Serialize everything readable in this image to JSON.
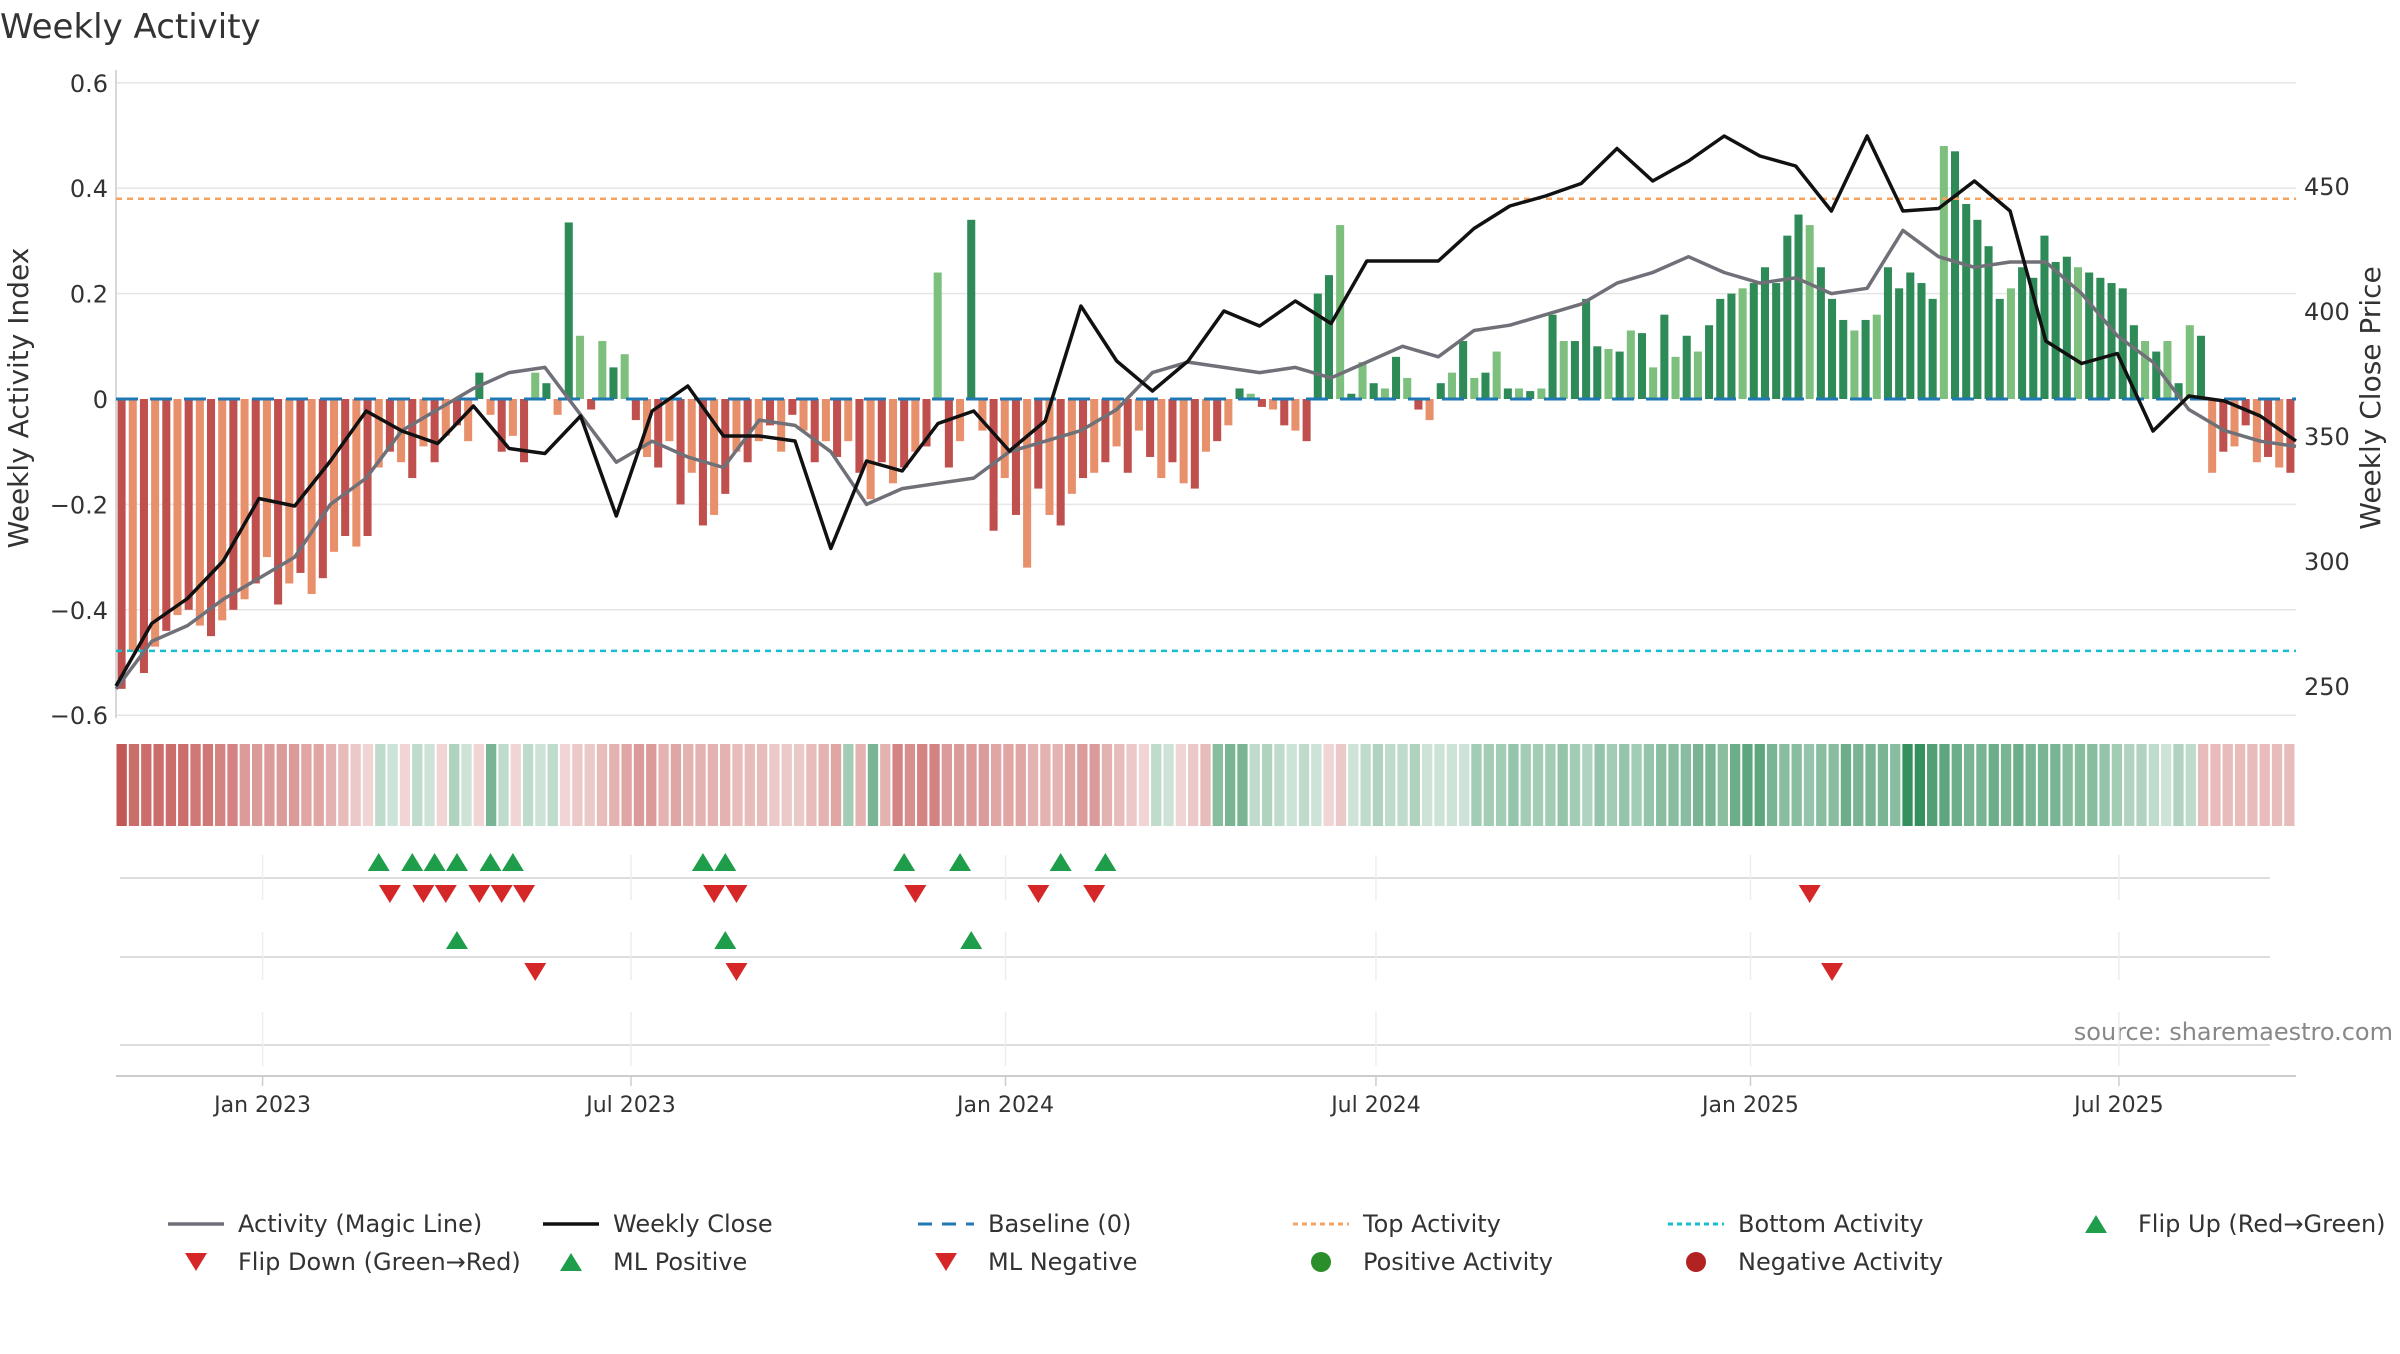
{
  "chart_data": {
    "type": "bar",
    "title": "Weekly Activity",
    "ylabel_left": "Weekly Activity Index",
    "ylabel_right": "Weekly Close Price",
    "ylim_left": [
      -0.6,
      0.6
    ],
    "ylim_right": [
      230,
      490
    ],
    "yticks_left": [
      0.6,
      0.4,
      0.2,
      0,
      -0.2,
      -0.4,
      -0.6
    ],
    "ytick_labels_left": [
      "0.6",
      "0.4",
      "0.2",
      "0",
      "−0.2",
      "−0.4",
      "−0.6"
    ],
    "yticks_right": [
      450,
      400,
      350,
      300,
      250
    ],
    "ytick_labels_right": [
      "450",
      "400",
      "350",
      "300",
      "250"
    ],
    "x_start": "2022-10-21",
    "x_end": "2025-09-26",
    "x_ticks": [
      {
        "date": "2023-01-01",
        "label": "Jan 2023"
      },
      {
        "date": "2023-07-01",
        "label": "Jul 2023"
      },
      {
        "date": "2024-01-01",
        "label": "Jan 2024"
      },
      {
        "date": "2024-07-01",
        "label": "Jul 2024"
      },
      {
        "date": "2025-01-01",
        "label": "Jan 2025"
      },
      {
        "date": "2025-07-01",
        "label": "Jul 2025"
      }
    ],
    "top_activity": 0.38,
    "bottom_activity": -0.478,
    "baseline": 0,
    "source": "source: sharemaestro.com",
    "activity_weekly": [
      -0.55,
      -0.48,
      -0.52,
      -0.47,
      -0.44,
      -0.41,
      -0.4,
      -0.43,
      -0.45,
      -0.42,
      -0.4,
      -0.38,
      -0.35,
      -0.3,
      -0.39,
      -0.35,
      -0.33,
      -0.37,
      -0.34,
      -0.29,
      -0.26,
      -0.28,
      -0.26,
      -0.13,
      -0.1,
      -0.12,
      -0.15,
      -0.09,
      -0.12,
      -0.07,
      -0.05,
      -0.08,
      0.05,
      -0.03,
      -0.1,
      -0.07,
      -0.12,
      0.05,
      0.03,
      -0.03,
      0.335,
      0.12,
      -0.02,
      0.11,
      0.06,
      0.085,
      -0.04,
      -0.11,
      -0.13,
      -0.08,
      -0.2,
      -0.14,
      -0.24,
      -0.22,
      -0.18,
      -0.1,
      -0.12,
      -0.08,
      -0.05,
      -0.1,
      -0.03,
      -0.06,
      -0.12,
      -0.08,
      -0.11,
      -0.08,
      -0.14,
      -0.19,
      -0.12,
      -0.16,
      -0.13,
      -0.1,
      -0.09,
      0.24,
      -0.13,
      -0.08,
      0.34,
      -0.06,
      -0.25,
      -0.15,
      -0.22,
      -0.32,
      -0.17,
      -0.22,
      -0.24,
      -0.18,
      -0.15,
      -0.14,
      -0.12,
      -0.09,
      -0.14,
      -0.06,
      -0.11,
      -0.15,
      -0.12,
      -0.16,
      -0.17,
      -0.1,
      -0.08,
      -0.05,
      0.02,
      0.01,
      -0.015,
      -0.02,
      -0.05,
      -0.06,
      -0.08,
      0.2,
      0.235,
      0.33,
      0.01,
      0.07,
      0.03,
      0.02,
      0.08,
      0.04,
      -0.02,
      -0.04,
      0.03,
      0.05,
      0.11,
      0.04,
      0.05,
      0.09,
      0.02,
      0.02,
      0.015,
      0.02,
      0.16,
      0.11,
      0.11,
      0.19,
      0.1,
      0.095,
      0.09,
      0.13,
      0.125,
      0.06,
      0.16,
      0.08,
      0.12,
      0.09,
      0.14,
      0.19,
      0.2,
      0.21,
      0.22,
      0.25,
      0.22,
      0.31,
      0.35,
      0.33,
      0.25,
      0.19,
      0.15,
      0.13,
      0.15,
      0.16,
      0.25,
      0.21,
      0.24,
      0.22,
      0.19,
      0.48,
      0.47,
      0.37,
      0.34,
      0.29,
      0.19,
      0.21,
      0.25,
      0.23,
      0.31,
      0.26,
      0.27,
      0.25,
      0.24,
      0.23,
      0.22,
      0.21,
      0.14,
      0.11,
      0.09,
      0.11,
      0.03,
      0.14,
      0.12,
      -0.14,
      -0.1,
      -0.09,
      -0.05,
      -0.12,
      -0.11,
      -0.13,
      -0.14
    ],
    "magic_line_monthly": [
      -0.55,
      -0.46,
      -0.43,
      -0.38,
      -0.34,
      -0.3,
      -0.2,
      -0.15,
      -0.06,
      -0.02,
      0.02,
      0.05,
      0.06,
      -0.03,
      -0.12,
      -0.08,
      -0.11,
      -0.13,
      -0.04,
      -0.05,
      -0.1,
      -0.2,
      -0.17,
      -0.16,
      -0.15,
      -0.1,
      -0.08,
      -0.06,
      -0.02,
      0.05,
      0.07,
      0.06,
      0.05,
      0.06,
      0.04,
      0.07,
      0.1,
      0.08,
      0.13,
      0.14,
      0.16,
      0.18,
      0.22,
      0.24,
      0.27,
      0.24,
      0.22,
      0.23,
      0.2,
      0.21,
      0.32,
      0.27,
      0.25,
      0.26,
      0.26,
      0.2,
      0.12,
      0.07,
      -0.02,
      -0.06,
      -0.08,
      -0.09
    ],
    "close_monthly": [
      250,
      275,
      285,
      300,
      325,
      322,
      340,
      360,
      352,
      347,
      362,
      345,
      343,
      358,
      318,
      360,
      370,
      350,
      350,
      348,
      305,
      340,
      336,
      355,
      360,
      344,
      356,
      402,
      380,
      368,
      380,
      400,
      394,
      404,
      395,
      420,
      420,
      420,
      433,
      442,
      446,
      451,
      465,
      452,
      460,
      470,
      462,
      458,
      440,
      470,
      440,
      441,
      452,
      440,
      388,
      379,
      383,
      352,
      366,
      364,
      358,
      348
    ],
    "strip_values": [
      -0.6,
      -0.5,
      -0.5,
      -0.5,
      -0.5,
      -0.5,
      -0.45,
      -0.45,
      -0.4,
      -0.4,
      -0.3,
      -0.3,
      -0.3,
      -0.3,
      -0.3,
      -0.25,
      -0.25,
      -0.2,
      -0.15,
      -0.1,
      -0.05,
      0.1,
      0.05,
      -0.05,
      0.1,
      0.05,
      -0.05,
      0.15,
      0.05,
      -0.05,
      0.35,
      0.1,
      -0.05,
      0.1,
      0.05,
      0.1,
      -0.05,
      -0.1,
      -0.1,
      -0.15,
      -0.2,
      -0.25,
      -0.3,
      -0.3,
      -0.2,
      -0.25,
      -0.2,
      -0.2,
      -0.2,
      -0.2,
      -0.15,
      -0.15,
      -0.15,
      -0.1,
      -0.1,
      -0.1,
      -0.15,
      -0.2,
      -0.25,
      0.2,
      -0.2,
      0.35,
      -0.2,
      -0.4,
      -0.35,
      -0.4,
      -0.4,
      -0.3,
      -0.3,
      -0.3,
      -0.3,
      -0.25,
      -0.25,
      -0.25,
      -0.2,
      -0.2,
      -0.2,
      -0.25,
      -0.3,
      -0.3,
      -0.2,
      -0.15,
      -0.1,
      -0.05,
      0.1,
      0.05,
      -0.05,
      -0.1,
      -0.15,
      0.3,
      0.35,
      0.35,
      0.1,
      0.15,
      0.1,
      0.05,
      0.1,
      0.05,
      -0.05,
      -0.1,
      0.05,
      0.1,
      0.15,
      0.1,
      0.1,
      0.15,
      0.05,
      0.05,
      0.05,
      0.05,
      0.2,
      0.2,
      0.2,
      0.25,
      0.2,
      0.2,
      0.2,
      0.25,
      0.2,
      0.15,
      0.25,
      0.2,
      0.25,
      0.2,
      0.25,
      0.3,
      0.3,
      0.3,
      0.35,
      0.35,
      0.3,
      0.4,
      0.45,
      0.45,
      0.35,
      0.3,
      0.3,
      0.25,
      0.3,
      0.3,
      0.4,
      0.35,
      0.35,
      0.35,
      0.3,
      0.6,
      0.6,
      0.5,
      0.45,
      0.4,
      0.35,
      0.35,
      0.4,
      0.35,
      0.4,
      0.35,
      0.35,
      0.35,
      0.3,
      0.3,
      0.3,
      0.25,
      0.2,
      0.15,
      0.15,
      0.1,
      0.05,
      0.15,
      0.1,
      -0.15,
      -0.15,
      -0.15,
      -0.15,
      -0.15,
      -0.15,
      -0.15,
      -0.15
    ],
    "flip_up_weeks": [
      23,
      26,
      28,
      30,
      33,
      35,
      52,
      54,
      70,
      75,
      84,
      88
    ],
    "flip_down_weeks": [
      24,
      27,
      29,
      32,
      34,
      36,
      53,
      55,
      71,
      82,
      87,
      151
    ],
    "ml_positive_weeks": [
      30,
      54,
      76
    ],
    "ml_negative_weeks": [
      37,
      55,
      153
    ],
    "colors": {
      "neg_dark": "#c0504d",
      "neg_light": "#e8906c",
      "pos_dark": "#2e8b57",
      "pos_light": "#7dbf7d",
      "magic_line": "#707078",
      "close": "#111111",
      "baseline": "#1f77b4",
      "top": "#f4a460",
      "bottom": "#17becf",
      "flip_up": "#1e9e4a",
      "flip_down": "#d62728",
      "pos_dot": "#2a8f2a",
      "neg_dot": "#b22222",
      "grid": "#e6e6e6",
      "axis": "#cccccc"
    },
    "legend": [
      {
        "label": "Activity (Magic Line)",
        "kind": "line",
        "color": "#707078"
      },
      {
        "label": "Weekly Close",
        "kind": "line",
        "color": "#111111"
      },
      {
        "label": "Baseline (0)",
        "kind": "dash",
        "color": "#1f77b4"
      },
      {
        "label": "Top Activity",
        "kind": "dot-line",
        "color": "#f4a460"
      },
      {
        "label": "Bottom Activity",
        "kind": "dot-line",
        "color": "#17becf"
      },
      {
        "label": "Flip Up (Red→Green)",
        "kind": "tri-up",
        "color": "#1e9e4a"
      },
      {
        "label": "Flip Down (Green→Red)",
        "kind": "tri-down",
        "color": "#d62728"
      },
      {
        "label": "ML Positive",
        "kind": "tri-up",
        "color": "#1e9e4a"
      },
      {
        "label": "ML Negative",
        "kind": "tri-down",
        "color": "#d62728"
      },
      {
        "label": "Positive Activity",
        "kind": "circle",
        "color": "#2a8f2a"
      },
      {
        "label": "Negative Activity",
        "kind": "circle",
        "color": "#b22222"
      }
    ]
  }
}
